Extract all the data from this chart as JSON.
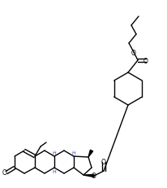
{
  "line_color": "#000000",
  "line_width": 1.0,
  "background": "#ffffff",
  "figsize": [
    2.07,
    2.32
  ],
  "dpi": 100,
  "xlim": [
    0,
    207
  ],
  "ylim": [
    0,
    232
  ]
}
